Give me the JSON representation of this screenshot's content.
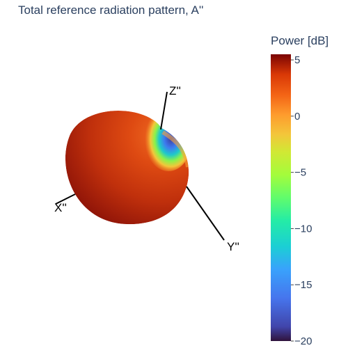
{
  "chart_data": {
    "type": "surface3d",
    "title": "Total reference radiation pattern, A''",
    "axes": {
      "x": "X''",
      "y": "Y''",
      "z": "Z''"
    },
    "colorbar": {
      "title": "Power [dB]",
      "range": [
        -20,
        5.5
      ],
      "ticks": [
        5,
        0,
        -5,
        -10,
        -15,
        -20
      ],
      "tick_labels": [
        "5",
        "0",
        "−5",
        "−10",
        "−15",
        "−20"
      ],
      "colorscale": "turbo"
    },
    "peak_power_db": 5.5,
    "min_power_db": -20
  }
}
